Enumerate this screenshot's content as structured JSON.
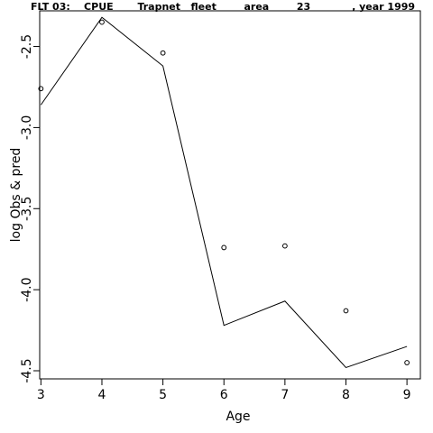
{
  "chart_data": {
    "type": "line",
    "title": "FLT 03:    CPUE       Trapnet   fleet        area        23            , year 1999",
    "xlabel": "Age",
    "ylabel": "log Obs & pred",
    "x": [
      3,
      4,
      5,
      6,
      7,
      8,
      9
    ],
    "xlim": [
      2.98,
      9.22
    ],
    "ylim": [
      -4.55,
      -2.28
    ],
    "xticks": [
      "3",
      "4",
      "5",
      "6",
      "7",
      "8",
      "9"
    ],
    "yticks": [
      "-2.5",
      "-3.0",
      "-3.5",
      "-4.0",
      "-4.5"
    ],
    "series": [
      {
        "style": "line",
        "values": [
          -2.86,
          -2.32,
          -2.62,
          -4.22,
          -4.07,
          -4.48,
          -4.35
        ]
      },
      {
        "style": "points",
        "values": [
          -2.76,
          -2.35,
          -2.54,
          -3.74,
          -3.73,
          -4.13,
          -4.45
        ]
      }
    ],
    "grid": false
  }
}
